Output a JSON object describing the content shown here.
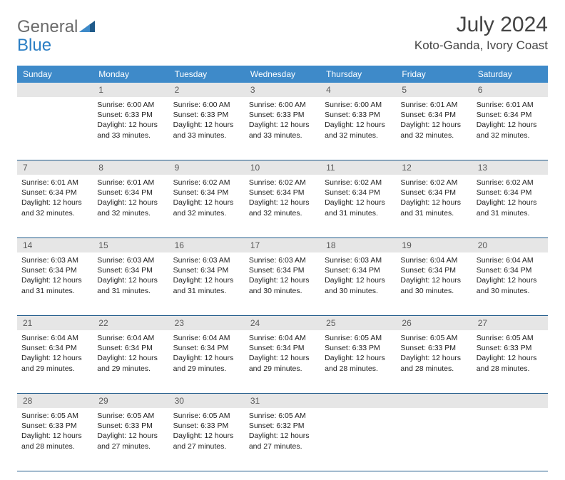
{
  "logo": {
    "text1": "General",
    "text2": "Blue"
  },
  "title": "July 2024",
  "location": "Koto-Ganda, Ivory Coast",
  "colors": {
    "header_bg": "#3e8ac9",
    "header_text": "#ffffff",
    "rule": "#1f5a8a",
    "daynum_bg": "#e6e6e6",
    "logo_gray": "#6b6b6b",
    "logo_blue": "#2a7ec4"
  },
  "day_names": [
    "Sunday",
    "Monday",
    "Tuesday",
    "Wednesday",
    "Thursday",
    "Friday",
    "Saturday"
  ],
  "weeks": [
    {
      "nums": [
        "",
        "1",
        "2",
        "3",
        "4",
        "5",
        "6"
      ],
      "cells": [
        null,
        {
          "sr": "Sunrise: 6:00 AM",
          "ss": "Sunset: 6:33 PM",
          "d1": "Daylight: 12 hours",
          "d2": "and 33 minutes."
        },
        {
          "sr": "Sunrise: 6:00 AM",
          "ss": "Sunset: 6:33 PM",
          "d1": "Daylight: 12 hours",
          "d2": "and 33 minutes."
        },
        {
          "sr": "Sunrise: 6:00 AM",
          "ss": "Sunset: 6:33 PM",
          "d1": "Daylight: 12 hours",
          "d2": "and 33 minutes."
        },
        {
          "sr": "Sunrise: 6:00 AM",
          "ss": "Sunset: 6:33 PM",
          "d1": "Daylight: 12 hours",
          "d2": "and 32 minutes."
        },
        {
          "sr": "Sunrise: 6:01 AM",
          "ss": "Sunset: 6:34 PM",
          "d1": "Daylight: 12 hours",
          "d2": "and 32 minutes."
        },
        {
          "sr": "Sunrise: 6:01 AM",
          "ss": "Sunset: 6:34 PM",
          "d1": "Daylight: 12 hours",
          "d2": "and 32 minutes."
        }
      ]
    },
    {
      "nums": [
        "7",
        "8",
        "9",
        "10",
        "11",
        "12",
        "13"
      ],
      "cells": [
        {
          "sr": "Sunrise: 6:01 AM",
          "ss": "Sunset: 6:34 PM",
          "d1": "Daylight: 12 hours",
          "d2": "and 32 minutes."
        },
        {
          "sr": "Sunrise: 6:01 AM",
          "ss": "Sunset: 6:34 PM",
          "d1": "Daylight: 12 hours",
          "d2": "and 32 minutes."
        },
        {
          "sr": "Sunrise: 6:02 AM",
          "ss": "Sunset: 6:34 PM",
          "d1": "Daylight: 12 hours",
          "d2": "and 32 minutes."
        },
        {
          "sr": "Sunrise: 6:02 AM",
          "ss": "Sunset: 6:34 PM",
          "d1": "Daylight: 12 hours",
          "d2": "and 32 minutes."
        },
        {
          "sr": "Sunrise: 6:02 AM",
          "ss": "Sunset: 6:34 PM",
          "d1": "Daylight: 12 hours",
          "d2": "and 31 minutes."
        },
        {
          "sr": "Sunrise: 6:02 AM",
          "ss": "Sunset: 6:34 PM",
          "d1": "Daylight: 12 hours",
          "d2": "and 31 minutes."
        },
        {
          "sr": "Sunrise: 6:02 AM",
          "ss": "Sunset: 6:34 PM",
          "d1": "Daylight: 12 hours",
          "d2": "and 31 minutes."
        }
      ]
    },
    {
      "nums": [
        "14",
        "15",
        "16",
        "17",
        "18",
        "19",
        "20"
      ],
      "cells": [
        {
          "sr": "Sunrise: 6:03 AM",
          "ss": "Sunset: 6:34 PM",
          "d1": "Daylight: 12 hours",
          "d2": "and 31 minutes."
        },
        {
          "sr": "Sunrise: 6:03 AM",
          "ss": "Sunset: 6:34 PM",
          "d1": "Daylight: 12 hours",
          "d2": "and 31 minutes."
        },
        {
          "sr": "Sunrise: 6:03 AM",
          "ss": "Sunset: 6:34 PM",
          "d1": "Daylight: 12 hours",
          "d2": "and 31 minutes."
        },
        {
          "sr": "Sunrise: 6:03 AM",
          "ss": "Sunset: 6:34 PM",
          "d1": "Daylight: 12 hours",
          "d2": "and 30 minutes."
        },
        {
          "sr": "Sunrise: 6:03 AM",
          "ss": "Sunset: 6:34 PM",
          "d1": "Daylight: 12 hours",
          "d2": "and 30 minutes."
        },
        {
          "sr": "Sunrise: 6:04 AM",
          "ss": "Sunset: 6:34 PM",
          "d1": "Daylight: 12 hours",
          "d2": "and 30 minutes."
        },
        {
          "sr": "Sunrise: 6:04 AM",
          "ss": "Sunset: 6:34 PM",
          "d1": "Daylight: 12 hours",
          "d2": "and 30 minutes."
        }
      ]
    },
    {
      "nums": [
        "21",
        "22",
        "23",
        "24",
        "25",
        "26",
        "27"
      ],
      "cells": [
        {
          "sr": "Sunrise: 6:04 AM",
          "ss": "Sunset: 6:34 PM",
          "d1": "Daylight: 12 hours",
          "d2": "and 29 minutes."
        },
        {
          "sr": "Sunrise: 6:04 AM",
          "ss": "Sunset: 6:34 PM",
          "d1": "Daylight: 12 hours",
          "d2": "and 29 minutes."
        },
        {
          "sr": "Sunrise: 6:04 AM",
          "ss": "Sunset: 6:34 PM",
          "d1": "Daylight: 12 hours",
          "d2": "and 29 minutes."
        },
        {
          "sr": "Sunrise: 6:04 AM",
          "ss": "Sunset: 6:34 PM",
          "d1": "Daylight: 12 hours",
          "d2": "and 29 minutes."
        },
        {
          "sr": "Sunrise: 6:05 AM",
          "ss": "Sunset: 6:33 PM",
          "d1": "Daylight: 12 hours",
          "d2": "and 28 minutes."
        },
        {
          "sr": "Sunrise: 6:05 AM",
          "ss": "Sunset: 6:33 PM",
          "d1": "Daylight: 12 hours",
          "d2": "and 28 minutes."
        },
        {
          "sr": "Sunrise: 6:05 AM",
          "ss": "Sunset: 6:33 PM",
          "d1": "Daylight: 12 hours",
          "d2": "and 28 minutes."
        }
      ]
    },
    {
      "nums": [
        "28",
        "29",
        "30",
        "31",
        "",
        "",
        ""
      ],
      "cells": [
        {
          "sr": "Sunrise: 6:05 AM",
          "ss": "Sunset: 6:33 PM",
          "d1": "Daylight: 12 hours",
          "d2": "and 28 minutes."
        },
        {
          "sr": "Sunrise: 6:05 AM",
          "ss": "Sunset: 6:33 PM",
          "d1": "Daylight: 12 hours",
          "d2": "and 27 minutes."
        },
        {
          "sr": "Sunrise: 6:05 AM",
          "ss": "Sunset: 6:33 PM",
          "d1": "Daylight: 12 hours",
          "d2": "and 27 minutes."
        },
        {
          "sr": "Sunrise: 6:05 AM",
          "ss": "Sunset: 6:32 PM",
          "d1": "Daylight: 12 hours",
          "d2": "and 27 minutes."
        },
        null,
        null,
        null
      ]
    }
  ]
}
